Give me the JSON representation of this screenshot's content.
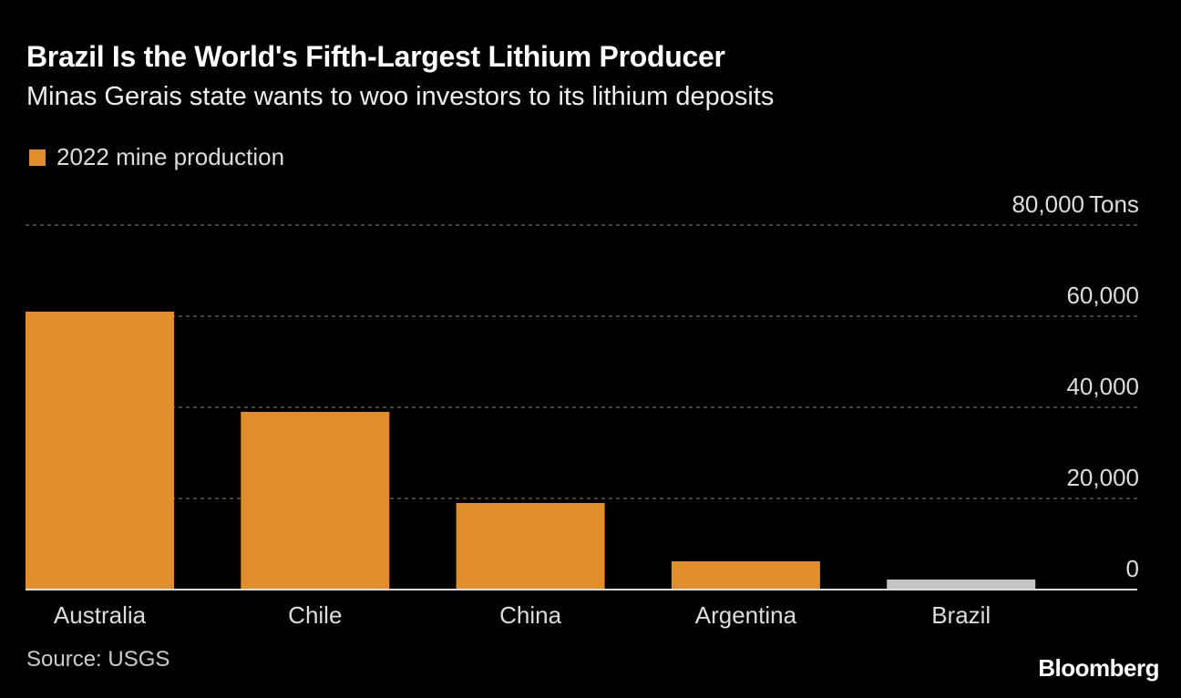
{
  "header": {
    "title": "Brazil Is the World's Fifth-Largest Lithium Producer",
    "subtitle": "Minas Gerais state wants to woo investors to its lithium deposits"
  },
  "footer": {
    "source": "Source: USGS",
    "logo": "Bloomberg"
  },
  "colors": {
    "primary": "#e08e2b",
    "highlight": "#c4c4c4",
    "background": "#000000"
  },
  "chart_data": {
    "type": "bar",
    "categories": [
      "Australia",
      "Chile",
      "China",
      "Argentina",
      "Brazil"
    ],
    "series": [
      {
        "name": "2022 mine production",
        "values": [
          61000,
          39000,
          19000,
          6200,
          2200
        ]
      }
    ],
    "highlighted_category": "Brazil",
    "yunit": "Tons",
    "ylim": [
      0,
      80000
    ],
    "yticks": [
      0,
      20000,
      40000,
      60000,
      80000
    ],
    "ytick_labels": [
      "0",
      "20,000",
      "40,000",
      "60,000",
      "80,000"
    ],
    "grid": true,
    "legend": "top-left"
  }
}
